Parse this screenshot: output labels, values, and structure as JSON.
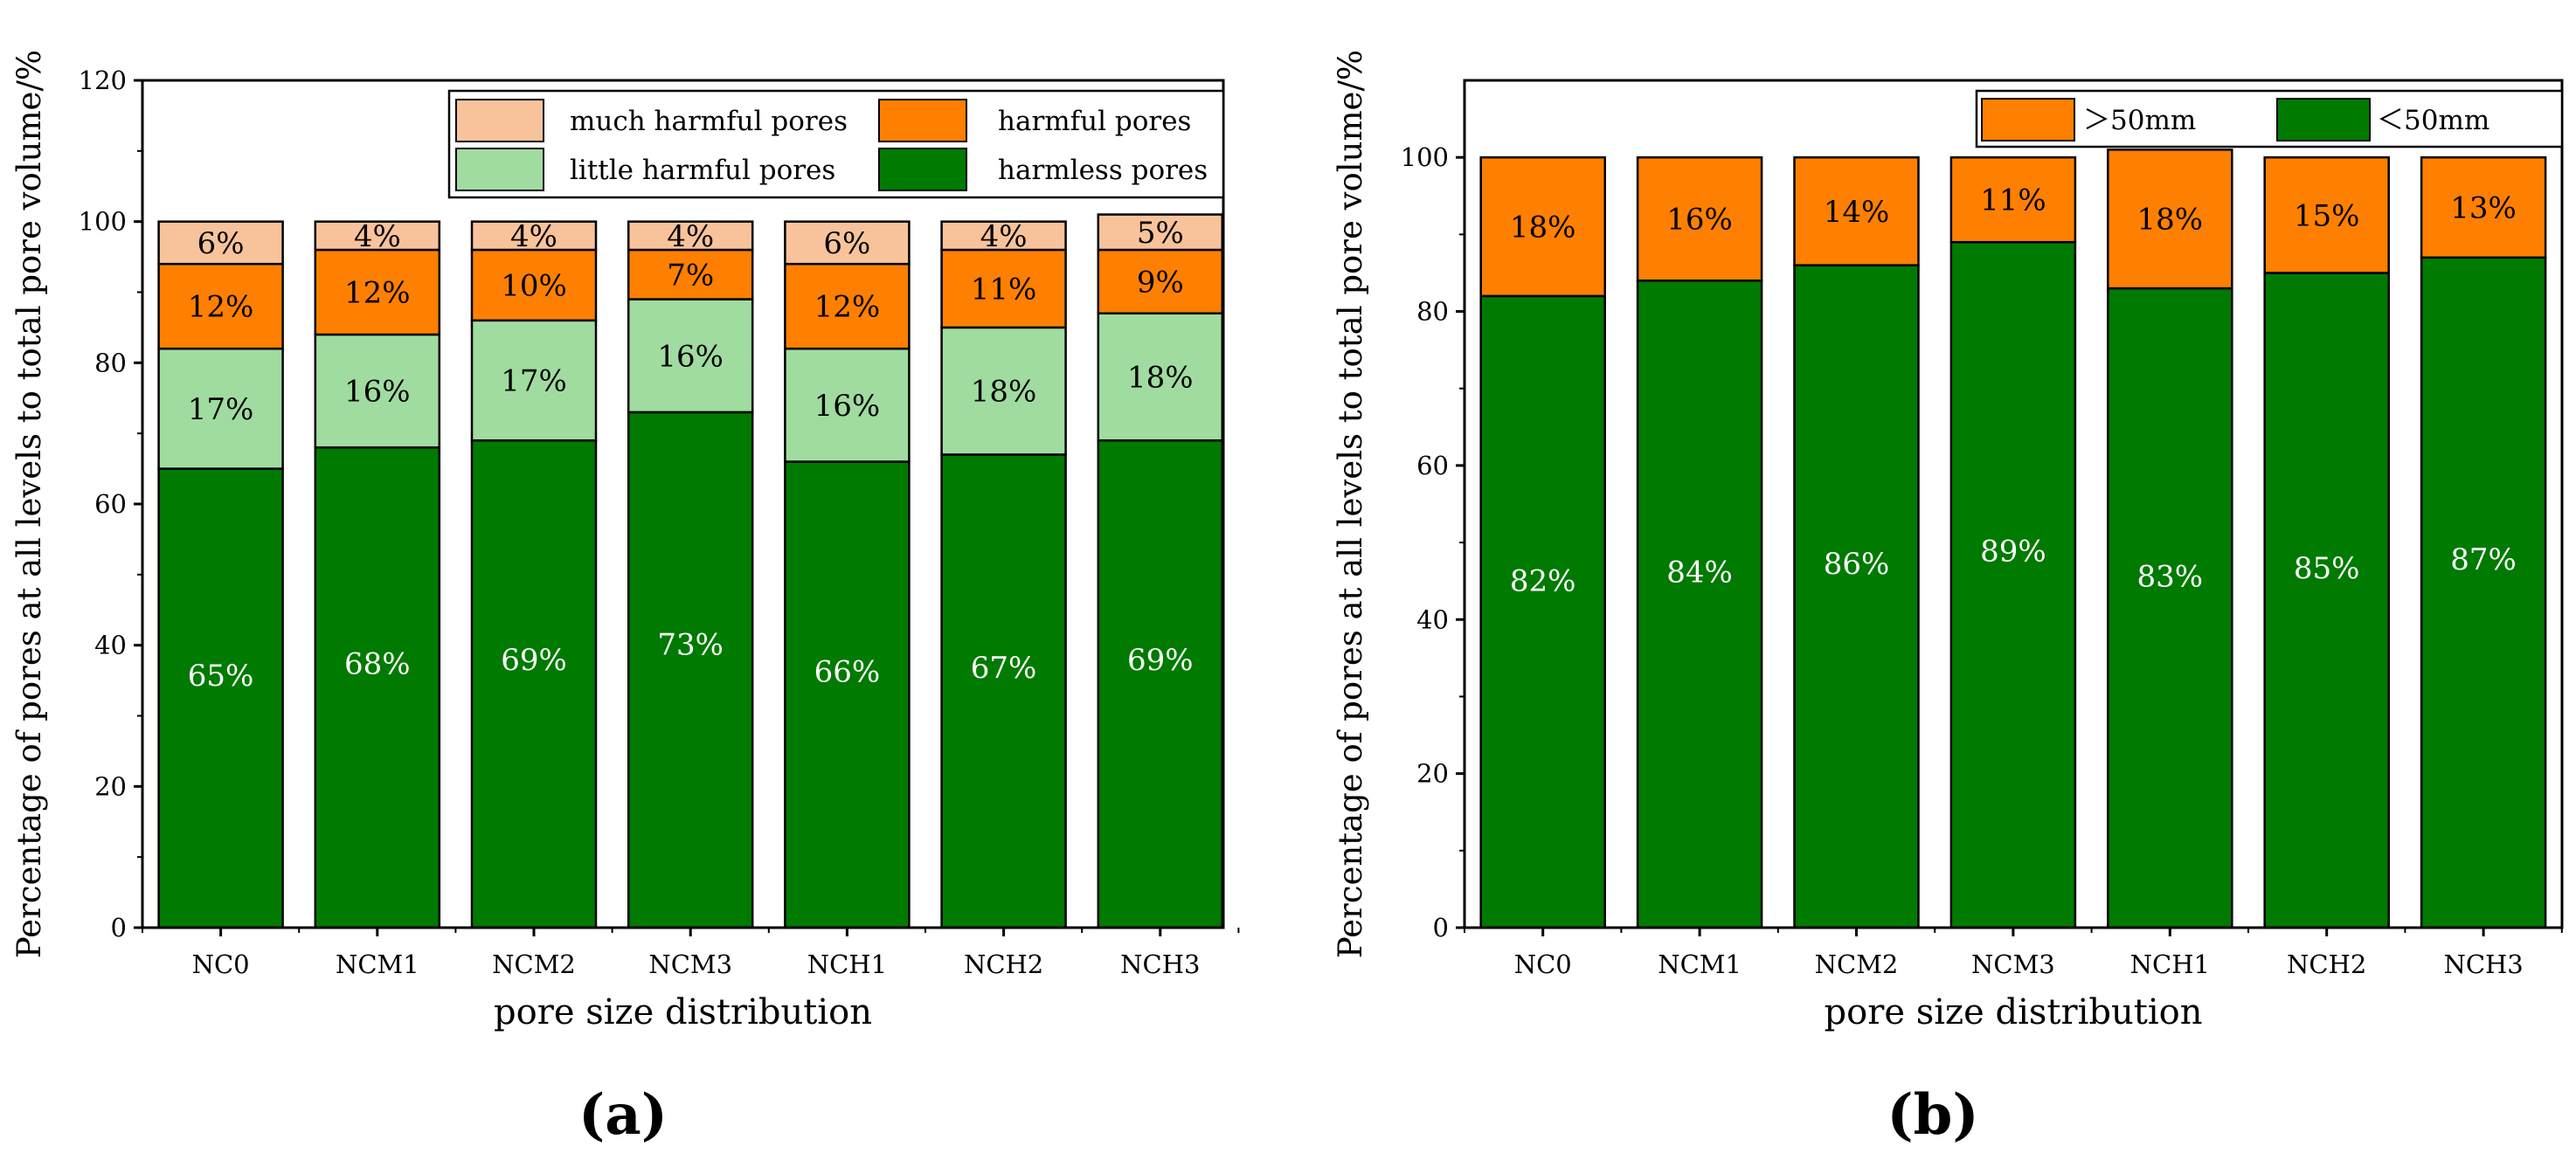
{
  "chart_data": [
    {
      "type": "bar",
      "stacked": true,
      "panel": "a",
      "title": "",
      "xlabel": "pore size distribution",
      "ylabel": "Percentage of pores at all levels to total pore volume/%",
      "ylim": [
        0,
        120
      ],
      "yticks": [
        "0",
        "20",
        "40",
        "60",
        "80",
        "100",
        "120"
      ],
      "categories": [
        "NC0",
        "NCM1",
        "NCM2",
        "NCM3",
        "NCH1",
        "NCH2",
        "NCH3"
      ],
      "series": [
        {
          "name": "harmless pores",
          "color": "#007a00",
          "values": [
            65,
            68,
            69,
            73,
            66,
            67,
            69
          ],
          "labels": [
            "65%",
            "68%",
            "69%",
            "73%",
            "66%",
            "67%",
            "69%"
          ],
          "label_color": "#ffffff"
        },
        {
          "name": "little harmful pores",
          "color": "#a0dca0",
          "values": [
            17,
            16,
            17,
            16,
            16,
            18,
            18
          ],
          "labels": [
            "17%",
            "16%",
            "17%",
            "16%",
            "16%",
            "18%",
            "18%"
          ],
          "label_color": "#000000"
        },
        {
          "name": "harmful pores",
          "color": "#ff8000",
          "values": [
            12,
            12,
            10,
            7,
            12,
            11,
            9
          ],
          "labels": [
            "12%",
            "12%",
            "10%",
            "7%",
            "12%",
            "11%",
            "9%"
          ],
          "label_color": "#000000"
        },
        {
          "name": "much harmful pores",
          "color": "#f8c39b",
          "values": [
            6,
            4,
            4,
            4,
            6,
            4,
            5
          ],
          "labels": [
            "6%",
            "4%",
            "4%",
            "4%",
            "6%",
            "4%",
            "5%"
          ],
          "label_color": "#000000"
        }
      ],
      "legend_position": "top-right"
    },
    {
      "type": "bar",
      "stacked": true,
      "panel": "b",
      "title": "",
      "xlabel": "pore size distribution",
      "ylabel": "Percentage of pores at all levels to total pore volume/%",
      "ylim": [
        0,
        110
      ],
      "yticks": [
        "0",
        "20",
        "40",
        "60",
        "80",
        "100"
      ],
      "categories": [
        "NC0",
        "NCM1",
        "NCM2",
        "NCM3",
        "NCH1",
        "NCH2",
        "NCH3"
      ],
      "series": [
        {
          "name": "＜50mm",
          "color": "#007a00",
          "values": [
            82,
            84,
            86,
            89,
            83,
            85,
            87
          ],
          "labels": [
            "82%",
            "84%",
            "86%",
            "89%",
            "83%",
            "85%",
            "87%"
          ],
          "label_color": "#ffffff"
        },
        {
          "name": "＞50mm",
          "color": "#ff8000",
          "values": [
            18,
            16,
            14,
            11,
            18,
            15,
            13
          ],
          "labels": [
            "18%",
            "16%",
            "14%",
            "11%",
            "18%",
            "15%",
            "13%"
          ],
          "label_color": "#000000"
        }
      ],
      "legend_position": "top-right"
    }
  ]
}
